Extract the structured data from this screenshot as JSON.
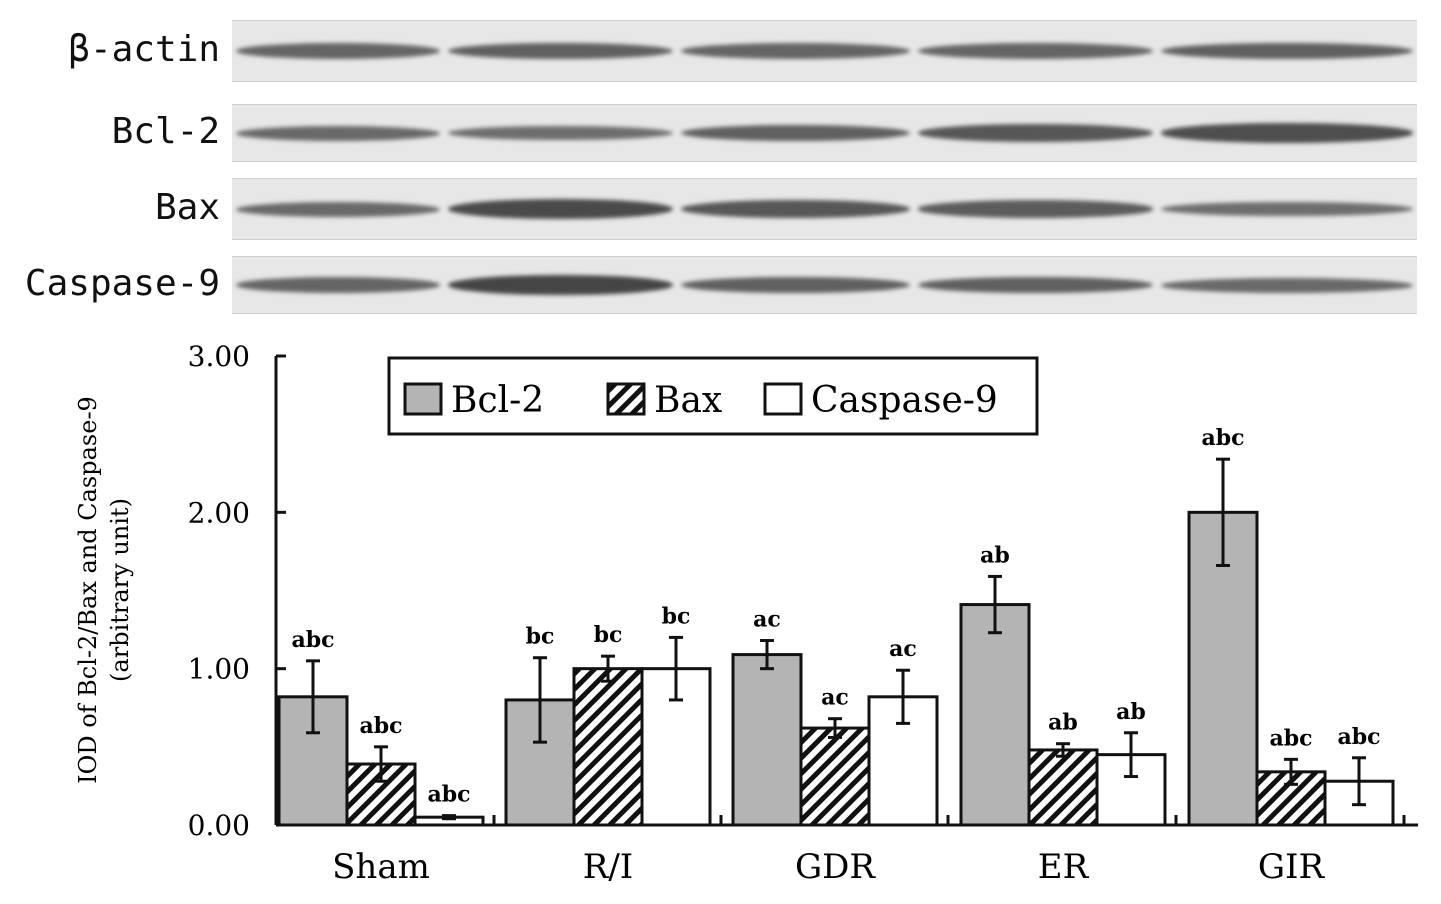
{
  "blot": {
    "rows": [
      {
        "label": "β-actin",
        "intensity": [
          0.55,
          0.6,
          0.55,
          0.55,
          0.6
        ]
      },
      {
        "label": "Bcl-2",
        "intensity": [
          0.5,
          0.45,
          0.6,
          0.7,
          0.8
        ]
      },
      {
        "label": "Bax",
        "intensity": [
          0.5,
          0.85,
          0.7,
          0.65,
          0.45
        ]
      },
      {
        "label": "Caspase-9",
        "intensity": [
          0.55,
          0.9,
          0.6,
          0.6,
          0.5
        ]
      }
    ]
  },
  "chart_data": {
    "type": "bar",
    "categories": [
      "Sham",
      "R/I",
      "GDR",
      "ER",
      "GIR"
    ],
    "ylabel_line1": "IOD of Bcl-2/Bax and Caspase-9",
    "ylabel_line2": "(arbitrary unit)",
    "ylim": [
      0,
      3
    ],
    "yticks": [
      "0.00",
      "1.00",
      "2.00",
      "3.00"
    ],
    "legend_position": "top-center",
    "series": [
      {
        "name": "Bcl-2",
        "fill": "#b4b4b4",
        "values": [
          0.82,
          0.8,
          1.09,
          1.41,
          2.0
        ],
        "errors": [
          0.23,
          0.27,
          0.09,
          0.18,
          0.34
        ],
        "labels": [
          "abc",
          "bc",
          "ac",
          "ab",
          "abc"
        ]
      },
      {
        "name": "Bax",
        "fill": "hatch",
        "values": [
          0.39,
          1.0,
          0.62,
          0.48,
          0.34
        ],
        "errors": [
          0.11,
          0.08,
          0.06,
          0.04,
          0.08
        ],
        "labels": [
          "abc",
          "bc",
          "ac",
          "ab",
          "abc"
        ]
      },
      {
        "name": "Caspase-9",
        "fill": "#ffffff",
        "values": [
          0.05,
          1.0,
          0.82,
          0.45,
          0.28
        ],
        "errors": [
          0.01,
          0.2,
          0.17,
          0.14,
          0.15
        ],
        "labels": [
          "abc",
          "bc",
          "ac",
          "ab",
          "abc"
        ]
      }
    ]
  }
}
